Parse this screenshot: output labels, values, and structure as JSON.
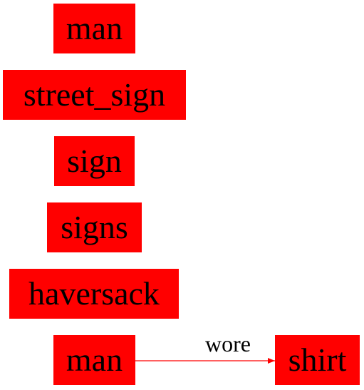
{
  "nodes": {
    "man_top": "man",
    "street_sign": "street_sign",
    "sign": "sign",
    "signs": "signs",
    "haversack": "haversack",
    "man_bottom": "man",
    "shirt": "shirt"
  },
  "edges": [
    {
      "from": "man_bottom",
      "to": "shirt",
      "label": "wore"
    }
  ],
  "colors": {
    "node_fill": "#ff0000",
    "edge": "#ff0000",
    "text": "#000000"
  }
}
